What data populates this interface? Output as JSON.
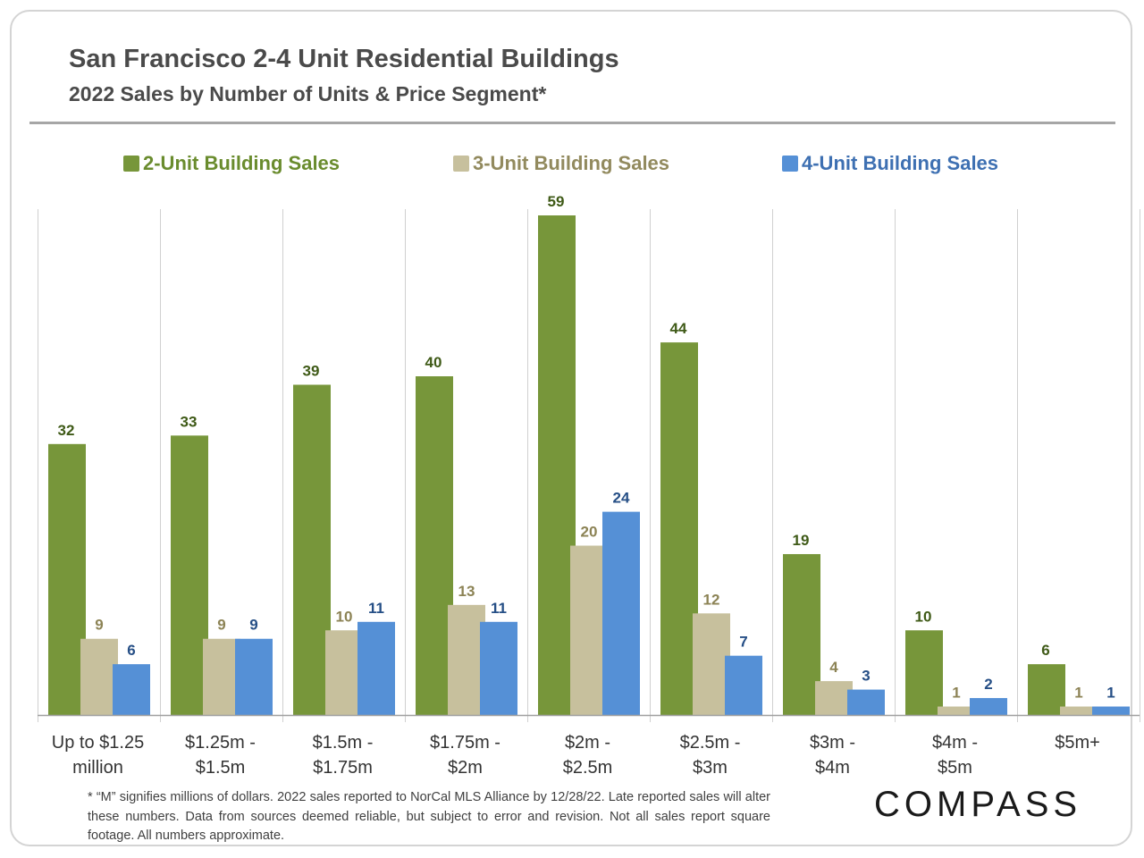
{
  "header": {
    "title": "San Francisco 2-4 Unit Residential Buildings",
    "subtitle": "2022 Sales by Number of Units & Price Segment*"
  },
  "colors": {
    "two_unit": "#77963a",
    "three_unit": "#c7c09d",
    "four_unit": "#5590d6",
    "two_unit_text": "#6a8c2e",
    "three_unit_text": "#928a5e",
    "four_unit_text": "#3e70b2",
    "value_two": "#3f5a17",
    "value_three": "#8c8355",
    "value_four": "#264f86"
  },
  "chart_data": {
    "type": "bar",
    "categories": [
      [
        "Up to $1.25",
        "million"
      ],
      [
        "$1.25m -",
        "$1.5m"
      ],
      [
        "$1.5m -",
        "$1.75m"
      ],
      [
        "$1.75m -",
        "$2m"
      ],
      [
        "$2m -",
        "$2.5m"
      ],
      [
        "$2.5m -",
        "$3m"
      ],
      [
        "$3m -",
        "$4m"
      ],
      [
        "$4m -",
        "$5m"
      ],
      [
        "$5m+"
      ]
    ],
    "series": [
      {
        "name": "2-Unit Building Sales",
        "values": [
          32,
          33,
          39,
          40,
          59,
          44,
          19,
          10,
          6
        ]
      },
      {
        "name": "3-Unit Building Sales",
        "values": [
          9,
          9,
          10,
          13,
          20,
          12,
          4,
          1,
          1
        ]
      },
      {
        "name": "4-Unit Building Sales",
        "values": [
          6,
          9,
          11,
          11,
          24,
          7,
          3,
          2,
          1
        ]
      }
    ],
    "ylim": [
      0,
      60
    ],
    "grid": "vertical separators between categories",
    "legend": "top-center",
    "data_labels": true
  },
  "footnote": "* “M” signifies millions of dollars. 2022 sales reported to NorCal MLS Alliance by 12/28/22. Late reported sales will alter these numbers. Data from sources deemed reliable, but subject to error and revision. Not all sales report square footage. All numbers  approximate.",
  "logo": "COMPASS"
}
